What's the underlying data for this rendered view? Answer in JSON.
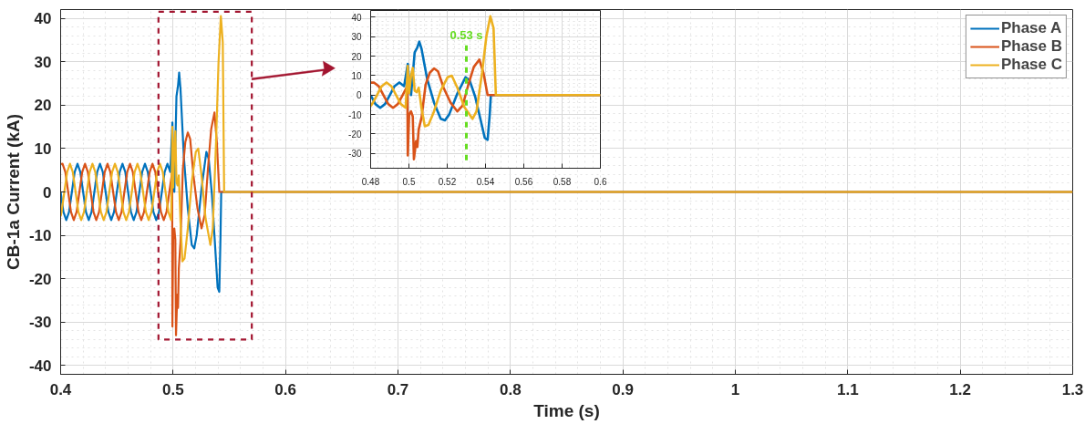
{
  "chart_data": [
    {
      "type": "line",
      "xlabel": "Time (s)",
      "ylabel": "CB-1a Current (kA)",
      "xlim": [
        0.4,
        1.3
      ],
      "ylim": [
        -42,
        42
      ],
      "xticks": [
        0.4,
        0.5,
        0.6,
        0.7,
        0.8,
        0.9,
        1,
        1.1,
        1.2,
        1.3
      ],
      "yticks": [
        -40,
        -30,
        -20,
        -10,
        0,
        10,
        20,
        30,
        40
      ],
      "grid": true,
      "legend": "top right",
      "line_style": "solid",
      "series": [
        {
          "name": "Phase A",
          "color": "#0072bd",
          "x": [
            0.4,
            0.4025,
            0.405,
            0.4075,
            0.41,
            0.4125,
            0.415,
            0.4175,
            0.42,
            0.4225,
            0.425,
            0.4275,
            0.43,
            0.4325,
            0.435,
            0.4375,
            0.44,
            0.4425,
            0.445,
            0.4475,
            0.45,
            0.4525,
            0.455,
            0.4575,
            0.46,
            0.4625,
            0.465,
            0.4675,
            0.47,
            0.4725,
            0.475,
            0.4775,
            0.48,
            0.4825,
            0.485,
            0.4875,
            0.49,
            0.4925,
            0.495,
            0.4975,
            0.4994,
            0.5001,
            0.5011,
            0.503,
            0.5044,
            0.5054,
            0.5066,
            0.5095,
            0.5131,
            0.5166,
            0.5188,
            0.521,
            0.5253,
            0.5296,
            0.5317,
            0.5346,
            0.5375,
            0.5396,
            0.5411,
            0.5422,
            0.5428,
            1.3
          ],
          "values": [
            0,
            -4.6,
            -6.5,
            -4.6,
            0,
            4.6,
            6.5,
            4.6,
            0,
            -4.6,
            -6.5,
            -4.6,
            0,
            4.6,
            6.5,
            4.6,
            0,
            -4.6,
            -6.5,
            -4.6,
            0,
            4.6,
            6.5,
            4.6,
            0,
            -4.6,
            -6.5,
            -4.6,
            0,
            4.6,
            6.5,
            4.6,
            0,
            -4.6,
            -6.5,
            -4.6,
            0,
            4.6,
            6.5,
            4.6,
            16,
            8,
            0,
            22,
            24.5,
            27.5,
            23.7,
            8.4,
            -3.8,
            -12.2,
            -13,
            -10,
            0.8,
            9.2,
            7.6,
            -0.8,
            -13,
            -22,
            -23,
            -10,
            0,
            0
          ]
        },
        {
          "name": "Phase B",
          "color": "#d95319",
          "x": [
            0.4,
            0.4017,
            0.4042,
            0.4067,
            0.4092,
            0.4117,
            0.4142,
            0.4167,
            0.4192,
            0.4217,
            0.4242,
            0.4267,
            0.4292,
            0.4317,
            0.4342,
            0.4367,
            0.4392,
            0.4417,
            0.4442,
            0.4467,
            0.4492,
            0.4517,
            0.4542,
            0.4567,
            0.4592,
            0.4617,
            0.4642,
            0.4667,
            0.4692,
            0.4717,
            0.4742,
            0.4767,
            0.4792,
            0.4817,
            0.4842,
            0.4867,
            0.4892,
            0.4917,
            0.4942,
            0.4967,
            0.4992,
            0.4994,
            0.5001,
            0.5011,
            0.502,
            0.5026,
            0.5037,
            0.5044,
            0.5051,
            0.5066,
            0.5087,
            0.5109,
            0.5131,
            0.5152,
            0.5181,
            0.5217,
            0.5253,
            0.5281,
            0.531,
            0.5339,
            0.5368,
            0.5389,
            0.5411,
            1.3
          ],
          "values": [
            6.4,
            6.5,
            4.6,
            0,
            -4.6,
            -6.5,
            -4.6,
            0,
            4.6,
            6.5,
            4.6,
            0,
            -4.6,
            -6.5,
            -4.6,
            0,
            4.6,
            6.5,
            4.6,
            0,
            -4.6,
            -6.5,
            -4.6,
            0,
            4.6,
            6.5,
            4.6,
            0,
            -4.6,
            -6.5,
            -4.6,
            0,
            4.6,
            6.5,
            4.6,
            0,
            -4.6,
            -6.5,
            -4.6,
            0,
            4.6,
            -31,
            -10,
            -8.4,
            -11,
            -33,
            -23.7,
            -26.7,
            -17.6,
            -11.5,
            5.3,
            11.5,
            13.7,
            12.2,
            3.8,
            -3.8,
            -8.4,
            -5.3,
            5.3,
            14.5,
            18.3,
            11.5,
            0,
            0
          ]
        },
        {
          "name": "Phase C",
          "color": "#edb120",
          "x": [
            0.4,
            0.4008,
            0.4033,
            0.4058,
            0.4083,
            0.4108,
            0.4133,
            0.4158,
            0.4183,
            0.4208,
            0.4233,
            0.4258,
            0.4283,
            0.4308,
            0.4333,
            0.4358,
            0.4383,
            0.4408,
            0.4433,
            0.4458,
            0.4483,
            0.4508,
            0.4533,
            0.4558,
            0.4583,
            0.4608,
            0.4633,
            0.4658,
            0.4683,
            0.4708,
            0.4733,
            0.4758,
            0.4783,
            0.4808,
            0.4833,
            0.4858,
            0.4883,
            0.4908,
            0.4933,
            0.4958,
            0.4983,
            0.4994,
            0.5001,
            0.5011,
            0.502,
            0.503,
            0.504,
            0.5051,
            0.5066,
            0.5083,
            0.5102,
            0.5131,
            0.5166,
            0.5202,
            0.5224,
            0.5253,
            0.5289,
            0.5332,
            0.5353,
            0.5382,
            0.5404,
            0.5425,
            0.5442,
            0.5454,
            1.3
          ],
          "values": [
            -5.6,
            -4.6,
            0,
            4.6,
            6.5,
            4.6,
            0,
            -4.6,
            -6.5,
            -4.6,
            0,
            4.6,
            6.5,
            4.6,
            0,
            -4.6,
            -6.5,
            -4.6,
            0,
            4.6,
            6.5,
            4.6,
            0,
            -4.6,
            -6.5,
            -4.6,
            0,
            4.6,
            6.5,
            4.6,
            0,
            -4.6,
            -6.5,
            -4.6,
            0,
            4.6,
            6.5,
            4.6,
            0,
            -4.6,
            -6.5,
            15,
            1,
            10,
            14,
            2.3,
            1.5,
            3.8,
            -6.9,
            -16,
            -15.3,
            -8.4,
            2.3,
            9.2,
            10,
            3.8,
            -6.1,
            -12.2,
            -8.4,
            11.5,
            29.8,
            40.5,
            34.4,
            0,
            0
          ]
        }
      ]
    },
    {
      "type": "line",
      "xlim": [
        0.48,
        0.6
      ],
      "ylim": [
        -37.6,
        43.5
      ],
      "xticks": [
        0.48,
        0.5,
        0.52,
        0.54,
        0.56,
        0.58,
        0.6
      ],
      "yticks": [
        -30,
        -20,
        -10,
        0,
        10,
        20,
        30,
        40
      ],
      "grid": true,
      "line_style": "solid",
      "ref_lines": [
        {
          "axis": "x",
          "value": 0.53,
          "label": "0.53 s",
          "color": "#66dd22",
          "line_style": "dashed"
        }
      ],
      "series": [
        {
          "color": "#0072bd",
          "x": [
            0.48,
            0.4825,
            0.485,
            0.4875,
            0.49,
            0.4925,
            0.495,
            0.4975,
            0.4994,
            0.5001,
            0.5011,
            0.503,
            0.5044,
            0.5054,
            0.5066,
            0.5095,
            0.5131,
            0.5166,
            0.5188,
            0.521,
            0.5253,
            0.5296,
            0.5317,
            0.5346,
            0.5375,
            0.5396,
            0.5411,
            0.5422,
            0.5428,
            0.6
          ],
          "values": [
            0,
            -4.6,
            -6.5,
            -4.6,
            0,
            4.6,
            6.5,
            4.6,
            16,
            8,
            0,
            22,
            24.5,
            27.5,
            23.7,
            8.4,
            -3.8,
            -12.2,
            -13,
            -10,
            0.8,
            9.2,
            7.6,
            -0.8,
            -13,
            -22,
            -23,
            -10,
            0,
            0
          ]
        },
        {
          "color": "#d95319",
          "x": [
            0.48,
            0.4817,
            0.4842,
            0.4867,
            0.4892,
            0.4917,
            0.4942,
            0.4967,
            0.4992,
            0.4994,
            0.5001,
            0.5011,
            0.502,
            0.5026,
            0.5037,
            0.5044,
            0.5051,
            0.5066,
            0.5087,
            0.5109,
            0.5131,
            0.5152,
            0.5181,
            0.5217,
            0.5253,
            0.5281,
            0.531,
            0.5339,
            0.5368,
            0.5389,
            0.5411,
            0.6
          ],
          "values": [
            6.4,
            6.5,
            4.6,
            0,
            -4.6,
            -6.5,
            -4.6,
            0,
            4.6,
            -31,
            -10,
            -8.4,
            -11,
            -33,
            -23.7,
            -26.7,
            -17.6,
            -11.5,
            5.3,
            11.5,
            13.7,
            12.2,
            3.8,
            -3.8,
            -8.4,
            -5.3,
            5.3,
            14.5,
            18.3,
            11.5,
            0,
            0
          ]
        },
        {
          "color": "#edb120",
          "x": [
            0.48,
            0.4808,
            0.4833,
            0.4858,
            0.4883,
            0.4908,
            0.4933,
            0.4958,
            0.4983,
            0.4994,
            0.5001,
            0.5011,
            0.502,
            0.503,
            0.504,
            0.5051,
            0.5066,
            0.5083,
            0.5102,
            0.5131,
            0.5166,
            0.5202,
            0.5224,
            0.5253,
            0.5289,
            0.5332,
            0.5353,
            0.5382,
            0.5404,
            0.5425,
            0.5442,
            0.5454,
            0.6
          ],
          "values": [
            -5.6,
            -4.6,
            0,
            4.6,
            6.5,
            4.6,
            0,
            -4.6,
            -6.5,
            15,
            1,
            10,
            14,
            2.3,
            1.5,
            3.8,
            -6.9,
            -16,
            -15.3,
            -8.4,
            2.3,
            9.2,
            10,
            3.8,
            -6.1,
            -12.2,
            -8.4,
            11.5,
            29.8,
            40.5,
            34.4,
            0,
            0
          ]
        }
      ]
    }
  ]
}
